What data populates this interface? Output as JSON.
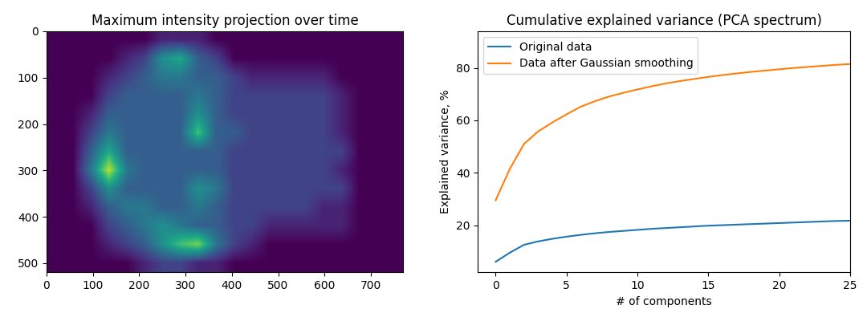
{
  "chart_data": [
    {
      "type": "heatmap",
      "title": "Maximum intensity projection over time",
      "xlim": [
        0,
        770
      ],
      "ylim": [
        520,
        0
      ],
      "xticks": [
        0,
        100,
        200,
        300,
        400,
        500,
        600,
        700
      ],
      "yticks": [
        0,
        100,
        200,
        300,
        400,
        500
      ],
      "color_range": [
        0,
        10
      ],
      "cells": [
        [
          0,
          0,
          0,
          0,
          0,
          0,
          1,
          1,
          1,
          0,
          0,
          0,
          0,
          0,
          0,
          0,
          0,
          0,
          0,
          0
        ],
        [
          0,
          0,
          0,
          0,
          1,
          2,
          5,
          6,
          3,
          2,
          0,
          0,
          0,
          0,
          0,
          0,
          0,
          0,
          0,
          0
        ],
        [
          0,
          0,
          0,
          1,
          2,
          3,
          4,
          4,
          3,
          3,
          2,
          1,
          1,
          1,
          1,
          1,
          0,
          0,
          0,
          0
        ],
        [
          0,
          0,
          0,
          2,
          3,
          3,
          3,
          3,
          4,
          3,
          2,
          2,
          2,
          2,
          2,
          2,
          1,
          0,
          0,
          0
        ],
        [
          0,
          0,
          1,
          3,
          3,
          3,
          3,
          3,
          5,
          3,
          2,
          2,
          2,
          2,
          2,
          2,
          1,
          0,
          0,
          0
        ],
        [
          0,
          0,
          2,
          4,
          3,
          3,
          3,
          3,
          7,
          3,
          3,
          2,
          2,
          2,
          2,
          2,
          1,
          0,
          0,
          0
        ],
        [
          0,
          0,
          3,
          6,
          3,
          3,
          3,
          3,
          3,
          3,
          2,
          2,
          2,
          2,
          2,
          2,
          2,
          0,
          0,
          0
        ],
        [
          0,
          0,
          4,
          9,
          4,
          3,
          3,
          3,
          3,
          3,
          2,
          2,
          2,
          2,
          2,
          2,
          1,
          0,
          0,
          0
        ],
        [
          0,
          0,
          2,
          5,
          3,
          3,
          3,
          3,
          5,
          4,
          2,
          2,
          2,
          2,
          2,
          2,
          2,
          0,
          0,
          0
        ],
        [
          0,
          0,
          1,
          3,
          4,
          4,
          3,
          3,
          4,
          3,
          2,
          2,
          2,
          2,
          2,
          1,
          1,
          0,
          0,
          0
        ],
        [
          0,
          0,
          0,
          2,
          3,
          4,
          5,
          4,
          3,
          3,
          2,
          2,
          1,
          1,
          1,
          1,
          1,
          0,
          0,
          0
        ],
        [
          0,
          0,
          0,
          1,
          2,
          3,
          5,
          7,
          8,
          4,
          2,
          1,
          0,
          0,
          0,
          0,
          0,
          0,
          0,
          0
        ],
        [
          0,
          0,
          0,
          0,
          0,
          1,
          2,
          2,
          1,
          1,
          0,
          0,
          0,
          0,
          0,
          0,
          0,
          0,
          0,
          0
        ]
      ]
    },
    {
      "type": "line",
      "title": "Cumulative explained variance (PCA spectrum)",
      "x_label": "# of components",
      "y_label": "Explained variance, %",
      "x": [
        0,
        1,
        2,
        3,
        4,
        5,
        6,
        7,
        8,
        9,
        10,
        11,
        12,
        13,
        14,
        15,
        16,
        17,
        18,
        19,
        20,
        21,
        22,
        23,
        24,
        25
      ],
      "xlim": [
        -1.25,
        25
      ],
      "ylim": [
        2,
        94
      ],
      "xticks": [
        0,
        5,
        10,
        15,
        20,
        25
      ],
      "yticks": [
        20,
        40,
        60,
        80
      ],
      "legend": "upper left",
      "series": [
        {
          "name": "Original data",
          "color": "#1f77b4",
          "values": [
            6.0,
            9.5,
            12.5,
            13.8,
            14.8,
            15.6,
            16.3,
            16.9,
            17.4,
            17.8,
            18.2,
            18.6,
            18.9,
            19.2,
            19.5,
            19.8,
            20.0,
            20.2,
            20.4,
            20.6,
            20.8,
            21.0,
            21.2,
            21.4,
            21.6,
            21.7
          ]
        },
        {
          "name": "Data after Gaussian smoothing",
          "color": "#ff7f0e",
          "values": [
            29.5,
            41.5,
            51.0,
            55.8,
            59.2,
            62.3,
            65.2,
            67.3,
            69.1,
            70.5,
            71.8,
            73.0,
            74.1,
            75.0,
            75.8,
            76.6,
            77.3,
            77.9,
            78.5,
            79.0,
            79.5,
            80.0,
            80.4,
            80.8,
            81.2,
            81.5
          ]
        }
      ]
    }
  ]
}
